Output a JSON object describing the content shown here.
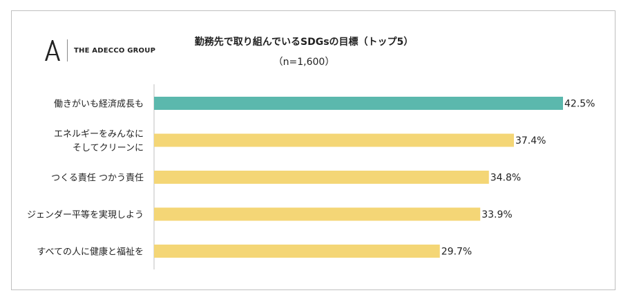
{
  "brand": {
    "name": "THE ADECCO GROUP",
    "mark_icon": "adecco-a-logo-icon"
  },
  "chart_data": {
    "type": "bar",
    "orientation": "horizontal",
    "title": "勤務先で取り組んでいるSDGsの目標（トップ5）",
    "subtitle": "（n=1,600）",
    "categories": [
      [
        "働きがいも経済成長も"
      ],
      [
        "エネルギーをみんなに",
        "そしてクリーンに"
      ],
      [
        "つくる責任 つかう責任"
      ],
      [
        "ジェンダー平等を実現しよう"
      ],
      [
        "すべての人に健康と福祉を"
      ]
    ],
    "values": [
      42.5,
      37.4,
      34.8,
      33.9,
      29.7
    ],
    "value_labels": [
      "42.5%",
      "37.4%",
      "34.8%",
      "33.9%",
      "29.7%"
    ],
    "unit": "%",
    "xlim": [
      0,
      42.5
    ],
    "grid": false,
    "legend": "none",
    "colors": {
      "highlight": "#5bb8ad",
      "default": "#f4d676",
      "axis": "#bfbfbf"
    },
    "highlight_index": 0
  }
}
